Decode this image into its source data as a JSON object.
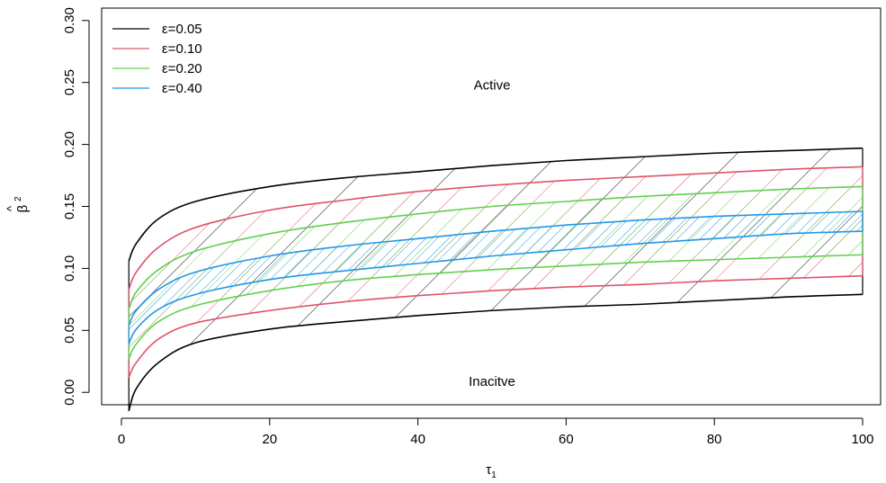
{
  "chart_data": {
    "type": "area",
    "title": "",
    "xlabel_main": "τ",
    "xlabel_sub": "1",
    "ylabel_main": "β",
    "ylabel_hat": "^",
    "ylabel_sup": "2",
    "xlim": [
      1,
      100
    ],
    "ylim": [
      -0.01,
      0.31
    ],
    "x_ticks": [
      0,
      20,
      40,
      60,
      80,
      100
    ],
    "x_tick_labels": [
      "0",
      "20",
      "40",
      "60",
      "80",
      "100"
    ],
    "y_ticks": [
      0.0,
      0.05,
      0.1,
      0.15,
      0.2,
      0.25,
      0.3
    ],
    "y_tick_labels": [
      "0.00",
      "0.05",
      "0.10",
      "0.15",
      "0.20",
      "0.25",
      "0.30"
    ],
    "grid": false,
    "legend_position": "top-left",
    "annotations": [
      {
        "text": "Active",
        "x": 50,
        "y": 0.248
      },
      {
        "text": "Inacitve",
        "x": 50,
        "y": 0.009
      }
    ],
    "x": [
      1,
      2,
      5,
      10,
      20,
      30,
      40,
      50,
      60,
      70,
      80,
      90,
      100
    ],
    "series": [
      {
        "name": "ε=0.05",
        "color": "#000000",
        "upper": [
          0.106,
          0.12,
          0.14,
          0.154,
          0.166,
          0.173,
          0.178,
          0.183,
          0.187,
          0.19,
          0.193,
          0.195,
          0.197
        ],
        "lower": [
          -0.015,
          0.003,
          0.024,
          0.04,
          0.051,
          0.057,
          0.062,
          0.066,
          0.069,
          0.071,
          0.074,
          0.077,
          0.079
        ]
      },
      {
        "name": "ε=0.10",
        "color": "#DF536B",
        "upper": [
          0.083,
          0.097,
          0.117,
          0.133,
          0.147,
          0.155,
          0.162,
          0.167,
          0.171,
          0.174,
          0.177,
          0.18,
          0.182
        ],
        "lower": [
          0.012,
          0.024,
          0.043,
          0.056,
          0.066,
          0.073,
          0.078,
          0.082,
          0.085,
          0.087,
          0.09,
          0.092,
          0.094
        ]
      },
      {
        "name": "ε=0.20",
        "color": "#61D04F",
        "upper": [
          0.067,
          0.081,
          0.099,
          0.114,
          0.128,
          0.137,
          0.144,
          0.15,
          0.154,
          0.158,
          0.161,
          0.164,
          0.166
        ],
        "lower": [
          0.027,
          0.039,
          0.057,
          0.07,
          0.082,
          0.09,
          0.095,
          0.099,
          0.102,
          0.105,
          0.107,
          0.109,
          0.111
        ]
      },
      {
        "name": "ε=0.40",
        "color": "#2297E6",
        "upper": [
          0.054,
          0.066,
          0.083,
          0.097,
          0.11,
          0.118,
          0.124,
          0.13,
          0.135,
          0.139,
          0.142,
          0.144,
          0.146
        ],
        "lower": [
          0.039,
          0.051,
          0.067,
          0.079,
          0.091,
          0.098,
          0.104,
          0.11,
          0.115,
          0.12,
          0.124,
          0.128,
          0.13
        ]
      }
    ]
  }
}
